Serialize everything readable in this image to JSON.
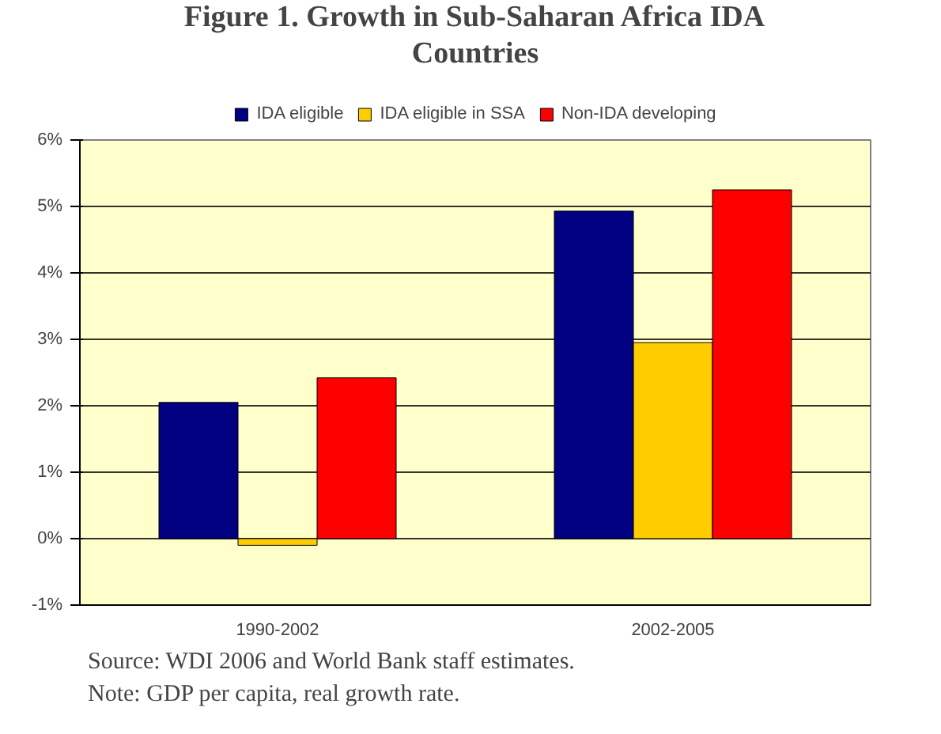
{
  "chart_data": {
    "type": "bar",
    "title": "Figure 1. Growth in Sub-Saharan Africa IDA Countries",
    "categories": [
      "1990-2002",
      "2002-2005"
    ],
    "series": [
      {
        "name": "IDA eligible",
        "color": "#000080",
        "values": [
          2.05,
          4.93
        ]
      },
      {
        "name": "IDA eligible in SSA",
        "color": "#ffcc00",
        "values": [
          -0.1,
          2.95
        ]
      },
      {
        "name": "Non-IDA developing",
        "color": "#ff0000",
        "values": [
          2.42,
          5.25
        ]
      }
    ],
    "ylim": [
      -1,
      6
    ],
    "yticks": [
      {
        "value": -1,
        "label": "-1%"
      },
      {
        "value": 0,
        "label": "0%"
      },
      {
        "value": 1,
        "label": "1%"
      },
      {
        "value": 2,
        "label": "2%"
      },
      {
        "value": 3,
        "label": "3%"
      },
      {
        "value": 4,
        "label": "4%"
      },
      {
        "value": 5,
        "label": "5%"
      },
      {
        "value": 6,
        "label": "6%"
      }
    ],
    "grid": "y",
    "legend": "top",
    "annotations": [
      "Source: WDI 2006 and World Bank staff estimates.",
      "Note:  GDP per capita, real growth rate."
    ]
  }
}
